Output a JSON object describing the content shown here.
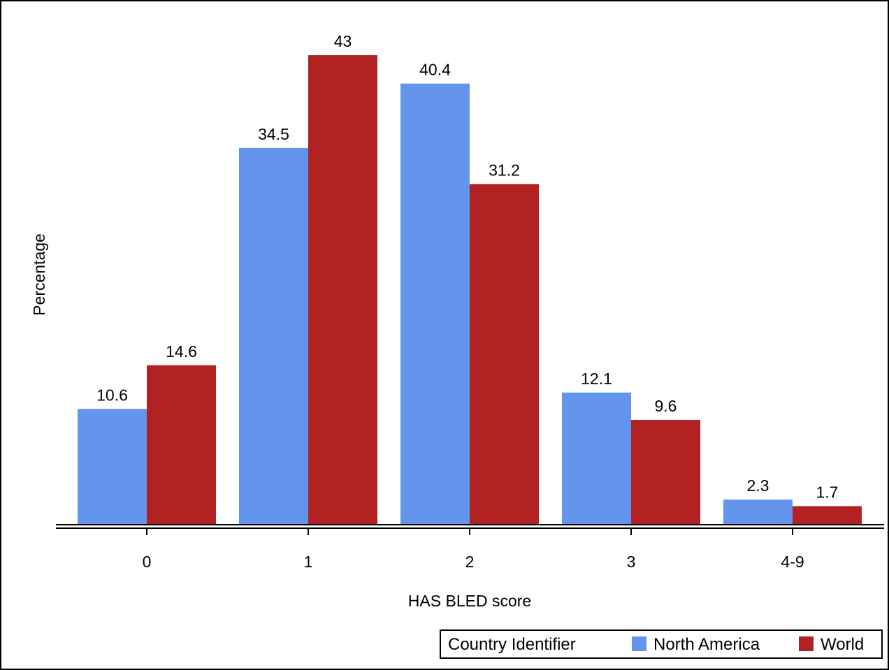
{
  "chart_data": {
    "type": "bar",
    "title": "",
    "xlabel": "HAS BLED score",
    "ylabel": "Percentage",
    "categories": [
      "0",
      "1",
      "2",
      "3",
      "4-9"
    ],
    "series": [
      {
        "name": "North America",
        "values": [
          10.6,
          34.5,
          40.4,
          12.1,
          2.3
        ],
        "color": "#6495ED"
      },
      {
        "name": "World",
        "values": [
          14.6,
          43,
          31.2,
          9.6,
          1.7
        ],
        "color": "#B22222"
      }
    ],
    "ylim": [
      0,
      43
    ],
    "grid": false,
    "legend": {
      "title": "Country Identifier",
      "placement": "bottom-right"
    }
  }
}
